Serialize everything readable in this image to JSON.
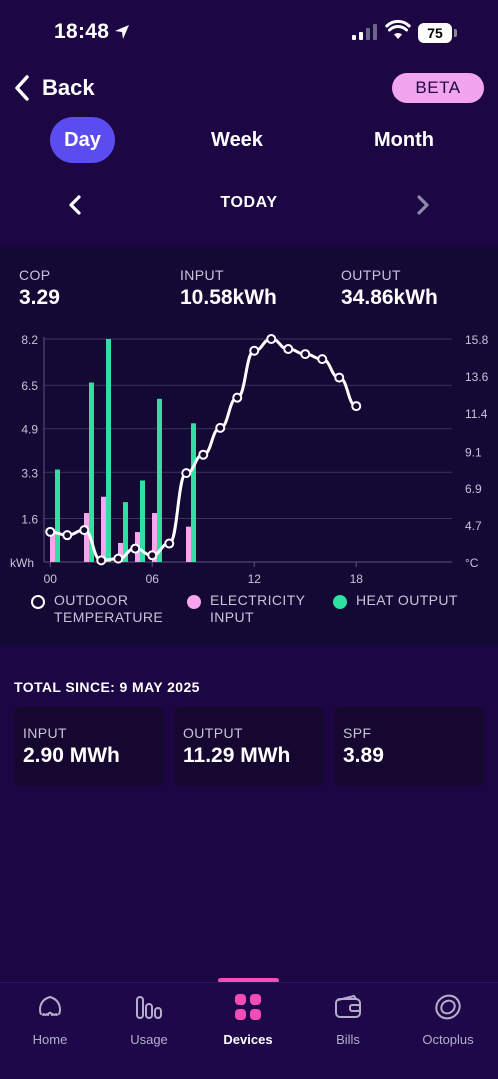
{
  "status_bar": {
    "time": "18:48",
    "battery": "75"
  },
  "header": {
    "back_label": "Back",
    "badge": "BETA"
  },
  "period_tabs": [
    {
      "label": "Day",
      "active": true
    },
    {
      "label": "Week",
      "active": false
    },
    {
      "label": "Month",
      "active": false
    }
  ],
  "date_nav": {
    "label": "TODAY"
  },
  "stats": [
    {
      "label": "COP",
      "value": "3.29"
    },
    {
      "label": "INPUT",
      "value": "10.58kWh"
    },
    {
      "label": "OUTPUT",
      "value": "34.86kWh"
    }
  ],
  "chart_data": {
    "type": "bar",
    "left_axis": {
      "unit": "kWh",
      "ticks": [
        "1.6",
        "3.3",
        "4.9",
        "6.5",
        "8.2"
      ],
      "range": [
        0,
        8.2
      ]
    },
    "right_axis": {
      "unit": "°C",
      "ticks": [
        "4.7",
        "6.9",
        "9.1",
        "11.4",
        "13.6",
        "15.8"
      ],
      "range": [
        2.5,
        15.8
      ]
    },
    "x_ticks": [
      {
        "label": "00",
        "hour": 0.25
      },
      {
        "label": "06",
        "hour": 6.25
      },
      {
        "label": "12",
        "hour": 12.25
      },
      {
        "label": "18",
        "hour": 18.25
      }
    ],
    "hours": [
      0,
      1,
      2,
      3,
      4,
      5,
      6,
      7,
      8
    ],
    "series": [
      {
        "name": "ELECTRICITY INPUT",
        "color": "#f6a5ee",
        "values": [
          1.2,
          0,
          1.8,
          2.4,
          0.7,
          1.1,
          1.8,
          0,
          1.3
        ]
      },
      {
        "name": "HEAT OUTPUT",
        "color": "#2fe0a3",
        "values": [
          3.4,
          0,
          6.6,
          8.2,
          2.2,
          3.0,
          6.0,
          0,
          5.1
        ]
      }
    ],
    "temperature": {
      "name": "OUTDOOR TEMPERATURE",
      "color": "#ffffff",
      "points": [
        [
          0.25,
          4.3
        ],
        [
          1.25,
          4.1
        ],
        [
          2.25,
          4.4
        ],
        [
          3.25,
          2.6
        ],
        [
          4.25,
          2.7
        ],
        [
          5.25,
          3.3
        ],
        [
          6.25,
          2.9
        ],
        [
          7.25,
          3.6
        ],
        [
          8.25,
          7.8
        ],
        [
          9.25,
          8.9
        ],
        [
          10.25,
          10.5
        ],
        [
          11.25,
          12.3
        ],
        [
          12.25,
          15.1
        ],
        [
          13.25,
          15.8
        ],
        [
          14.25,
          15.2
        ],
        [
          15.25,
          14.9
        ],
        [
          16.25,
          14.6
        ],
        [
          17.25,
          13.5
        ],
        [
          18.25,
          11.8
        ]
      ]
    }
  },
  "legend": [
    {
      "label": "OUTDOOR\nTEMPERATURE",
      "color": "#ffffff",
      "style": "ring"
    },
    {
      "label": "ELECTRICITY\nINPUT",
      "color": "#f6a5ee",
      "style": "dot"
    },
    {
      "label": "HEAT OUTPUT",
      "color": "#2fe0a3",
      "style": "dot"
    }
  ],
  "totals": {
    "title": "TOTAL SINCE: 9 MAY 2025",
    "cards": [
      {
        "label": "INPUT",
        "value": "2.90 MWh"
      },
      {
        "label": "OUTPUT",
        "value": "11.29 MWh"
      },
      {
        "label": "SPF",
        "value": "3.89"
      }
    ]
  },
  "tab_bar": {
    "items": [
      {
        "label": "Home",
        "icon": "octopus-icon",
        "active": false
      },
      {
        "label": "Usage",
        "icon": "usage-bars-icon",
        "active": false
      },
      {
        "label": "Devices",
        "icon": "devices-grid-icon",
        "active": true
      },
      {
        "label": "Bills",
        "icon": "wallet-icon",
        "active": false
      },
      {
        "label": "Octoplus",
        "icon": "octoplus-coin-icon",
        "active": false
      }
    ]
  }
}
